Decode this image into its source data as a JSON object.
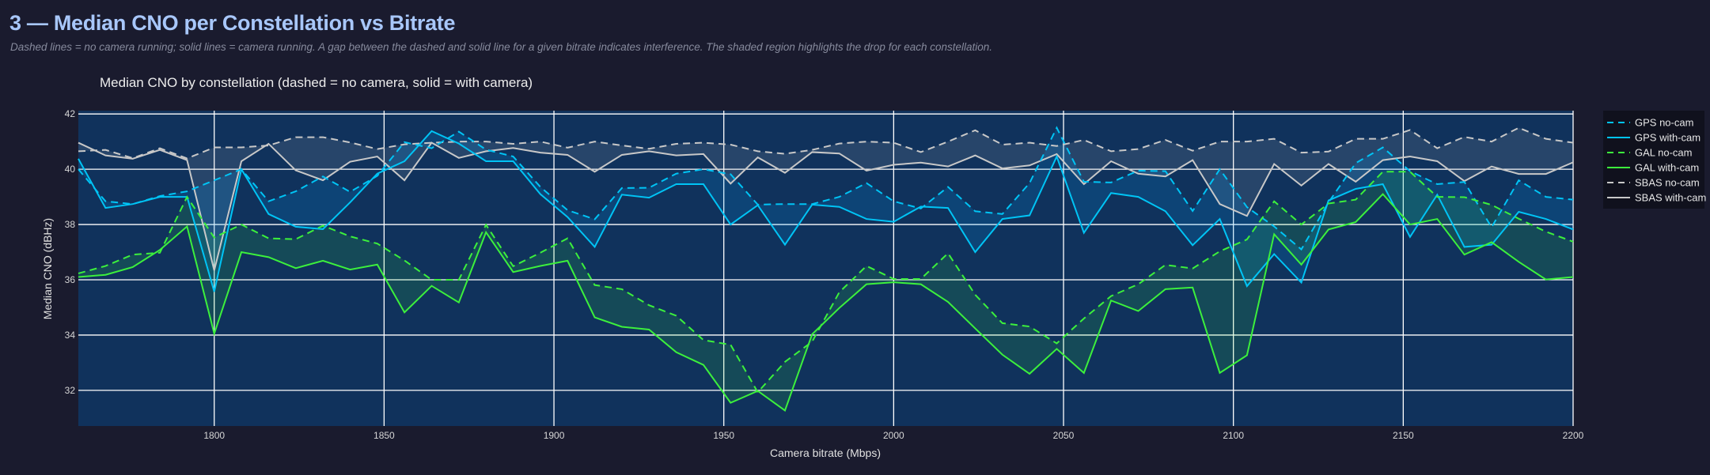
{
  "header": {
    "title": "3 — Median CNO per Constellation vs Bitrate",
    "subtitle": "Dashed lines = no camera running; solid lines = camera running. A gap between the dashed and solid line for a given bitrate indicates interference. The shaded region highlights the drop for each constellation."
  },
  "chart_data": {
    "type": "line",
    "title": "Median CNO by constellation  (dashed = no camera, solid = with camera)",
    "xlabel": "Camera bitrate (Mbps)",
    "ylabel": "Median CNO (dBHz)",
    "xlim": [
      1760,
      2200
    ],
    "ylim": [
      30.71,
      42.12
    ],
    "xticks": [
      1800,
      1850,
      1900,
      1950,
      2000,
      2050,
      2100,
      2150,
      2200
    ],
    "yticks": [
      32,
      34,
      36,
      38,
      40,
      42
    ],
    "grid": true,
    "legend_position": "right",
    "colors": {
      "GPS": "#00c4f5",
      "GAL": "#3cf03c",
      "SBAS": "#c8c8c8",
      "plot_bg": "#10325c",
      "page_bg": "#1a1b2e"
    },
    "x": [
      1760,
      1768,
      1776,
      1784,
      1792,
      1800,
      1808,
      1816,
      1824,
      1832,
      1840,
      1848,
      1856,
      1864,
      1872,
      1880,
      1888,
      1896,
      1904,
      1912,
      1920,
      1928,
      1936,
      1944,
      1952,
      1960,
      1968,
      1976,
      1984,
      1992,
      2000,
      2008,
      2016,
      2024,
      2032,
      2040,
      2048,
      2056,
      2064,
      2072,
      2080,
      2088,
      2096,
      2104,
      2112,
      2120,
      2128,
      2136,
      2144,
      2152,
      2160,
      2168,
      2176,
      2184,
      2192,
      2200
    ],
    "series": [
      {
        "name": "GPS no-cam",
        "constellation": "GPS",
        "style": "dashed",
        "values": [
          40.0,
          38.84,
          38.74,
          39.03,
          39.2,
          39.6,
          40.0,
          38.84,
          39.2,
          39.74,
          39.18,
          39.76,
          40.98,
          40.76,
          41.36,
          40.71,
          40.46,
          39.36,
          38.52,
          38.19,
          39.32,
          39.33,
          39.84,
          40.0,
          39.82,
          38.72,
          38.74,
          38.74,
          39.0,
          39.5,
          38.84,
          38.58,
          39.36,
          38.48,
          38.38,
          39.5,
          41.5,
          39.55,
          39.52,
          39.95,
          39.93,
          38.49,
          40.0,
          38.63,
          37.93,
          37.1,
          38.8,
          40.22,
          40.79,
          39.93,
          39.46,
          39.54,
          37.9,
          39.6,
          39.0,
          38.9
        ]
      },
      {
        "name": "GPS with-cam",
        "constellation": "GPS",
        "style": "solid",
        "values": [
          40.38,
          38.6,
          38.74,
          39.0,
          39.0,
          35.57,
          40.0,
          38.38,
          37.92,
          37.83,
          38.8,
          39.84,
          40.29,
          41.38,
          40.93,
          40.29,
          40.29,
          39.1,
          38.27,
          37.19,
          39.08,
          38.97,
          39.46,
          39.46,
          38.0,
          38.7,
          37.27,
          38.72,
          38.64,
          38.2,
          38.1,
          38.65,
          38.6,
          37.0,
          38.2,
          38.33,
          40.46,
          37.7,
          39.14,
          39.0,
          38.48,
          37.25,
          38.2,
          35.77,
          36.93,
          35.9,
          38.87,
          39.29,
          39.46,
          37.55,
          39.08,
          37.19,
          37.27,
          38.46,
          38.2,
          37.82
        ]
      },
      {
        "name": "GAL no-cam",
        "constellation": "GAL",
        "style": "dashed",
        "values": [
          36.23,
          36.5,
          36.91,
          36.98,
          39.0,
          37.53,
          38.0,
          37.5,
          37.47,
          37.96,
          37.57,
          37.31,
          36.7,
          36.0,
          36.0,
          37.99,
          36.49,
          36.98,
          37.5,
          35.81,
          35.66,
          35.08,
          34.7,
          33.82,
          33.65,
          31.93,
          33.03,
          33.76,
          35.55,
          36.5,
          36.03,
          36.03,
          36.96,
          35.46,
          34.43,
          34.31,
          33.7,
          34.6,
          35.41,
          35.84,
          36.54,
          36.41,
          37.03,
          37.46,
          38.84,
          38.0,
          38.76,
          38.9,
          39.91,
          39.91,
          39.0,
          38.99,
          38.71,
          38.21,
          37.74,
          37.38
        ]
      },
      {
        "name": "GAL with-cam",
        "constellation": "GAL",
        "style": "solid",
        "values": [
          36.1,
          36.18,
          36.46,
          37.08,
          37.93,
          34.05,
          37.0,
          36.82,
          36.42,
          36.69,
          36.37,
          36.55,
          34.82,
          35.78,
          35.18,
          37.72,
          36.28,
          36.5,
          36.69,
          34.64,
          34.3,
          34.2,
          33.38,
          32.92,
          31.55,
          31.98,
          31.27,
          34.03,
          34.98,
          35.84,
          35.91,
          35.84,
          35.2,
          34.24,
          33.29,
          32.6,
          33.5,
          32.63,
          35.25,
          34.87,
          35.66,
          35.72,
          32.63,
          33.27,
          37.65,
          36.55,
          37.82,
          38.09,
          39.1,
          38.0,
          38.2,
          36.91,
          37.36,
          36.65,
          36.01,
          36.1
        ]
      },
      {
        "name": "SBAS no-cam",
        "constellation": "SBAS",
        "style": "dashed",
        "values": [
          40.65,
          40.7,
          40.4,
          40.76,
          40.39,
          40.79,
          40.79,
          40.86,
          41.16,
          41.16,
          40.97,
          40.73,
          40.9,
          40.96,
          41.0,
          41.0,
          40.92,
          41.0,
          40.78,
          41.0,
          40.86,
          40.74,
          40.92,
          40.96,
          40.89,
          40.65,
          40.56,
          40.7,
          40.93,
          41.0,
          40.96,
          40.62,
          41.0,
          41.41,
          40.89,
          40.96,
          40.84,
          41.06,
          40.65,
          40.73,
          41.06,
          40.67,
          41.0,
          41.0,
          41.1,
          40.6,
          40.64,
          41.1,
          41.1,
          41.42,
          40.76,
          41.17,
          41.0,
          41.5,
          41.1,
          40.96
        ]
      },
      {
        "name": "SBAS with-cam",
        "constellation": "SBAS",
        "style": "solid",
        "values": [
          40.96,
          40.5,
          40.38,
          40.7,
          40.33,
          36.34,
          40.29,
          40.92,
          39.96,
          39.6,
          40.27,
          40.46,
          39.6,
          40.96,
          40.41,
          40.65,
          40.77,
          40.6,
          40.52,
          39.91,
          40.52,
          40.65,
          40.5,
          40.55,
          39.48,
          40.43,
          39.87,
          40.62,
          40.57,
          39.95,
          40.16,
          40.24,
          40.1,
          40.5,
          40.03,
          40.14,
          40.55,
          39.46,
          40.29,
          39.84,
          39.74,
          40.33,
          38.74,
          38.31,
          40.19,
          39.41,
          40.19,
          39.55,
          40.33,
          40.46,
          40.29,
          39.57,
          40.1,
          39.83,
          39.83,
          40.25
        ]
      }
    ],
    "shaded_regions": [
      "SBAS",
      "GPS",
      "GAL"
    ]
  }
}
